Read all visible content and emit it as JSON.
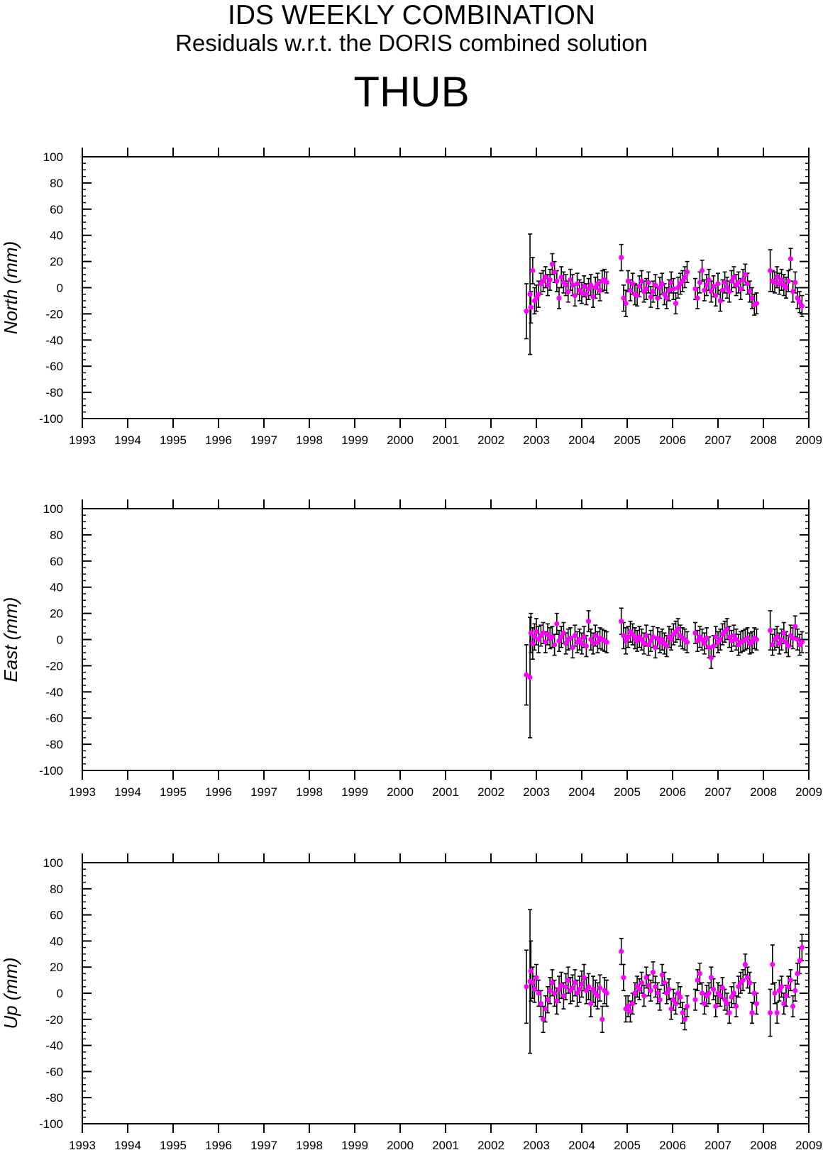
{
  "header": {
    "title": "IDS WEEKLY COMBINATION",
    "subtitle": "Residuals w.r.t. the DORIS combined solution",
    "station": "THUB"
  },
  "colors": {
    "marker": "#ff00ff",
    "errorbar": "#000000",
    "axis": "#000000"
  },
  "chart_data": [
    {
      "type": "scatter",
      "title": "",
      "ylabel": "North (mm)",
      "xlabel": "",
      "xlim": [
        1993,
        2009
      ],
      "ylim": [
        -100,
        100
      ],
      "x_ticks": [
        "1993",
        "1994",
        "1995",
        "1996",
        "1997",
        "1998",
        "1999",
        "2000",
        "2001",
        "2002",
        "2003",
        "2004",
        "2005",
        "2006",
        "2007",
        "2008",
        "2009"
      ],
      "y_ticks": [
        "100",
        "80",
        "60",
        "40",
        "20",
        "0",
        "-20",
        "-40",
        "-60",
        "-80",
        "-100"
      ],
      "grid": false,
      "error_bars": true,
      "series": [
        {
          "x": [
            2002.78,
            2002.86,
            2002.88,
            2002.92,
            2002.96,
            2003.0,
            2003.05,
            2003.1,
            2003.15,
            2003.2,
            2003.25,
            2003.3,
            2003.35,
            2003.4,
            2003.45,
            2003.5,
            2003.55,
            2003.6,
            2003.65,
            2003.7,
            2003.75,
            2003.8,
            2003.85,
            2003.9,
            2003.95,
            2004.0,
            2004.05,
            2004.1,
            2004.15,
            2004.2,
            2004.25,
            2004.3,
            2004.35,
            2004.4,
            2004.45,
            2004.5,
            2004.55,
            2004.87,
            2004.92,
            2004.97,
            2005.02,
            2005.07,
            2005.12,
            2005.17,
            2005.22,
            2005.27,
            2005.32,
            2005.37,
            2005.42,
            2005.47,
            2005.52,
            2005.57,
            2005.62,
            2005.67,
            2005.72,
            2005.77,
            2005.82,
            2005.87,
            2005.92,
            2005.97,
            2006.02,
            2006.07,
            2006.12,
            2006.17,
            2006.22,
            2006.27,
            2006.32,
            2006.5,
            2006.55,
            2006.6,
            2006.65,
            2006.7,
            2006.75,
            2006.8,
            2006.85,
            2006.9,
            2006.95,
            2007.0,
            2007.05,
            2007.1,
            2007.15,
            2007.2,
            2007.25,
            2007.3,
            2007.35,
            2007.4,
            2007.45,
            2007.5,
            2007.55,
            2007.6,
            2007.65,
            2007.7,
            2007.75,
            2007.8,
            2007.85,
            2008.15,
            2008.2,
            2008.25,
            2008.3,
            2008.35,
            2008.4,
            2008.45,
            2008.5,
            2008.55,
            2008.6,
            2008.65,
            2008.7,
            2008.75,
            2008.8,
            2008.85
          ],
          "y": [
            -18,
            -5,
            -15,
            13,
            -10,
            -8,
            -5,
            3,
            5,
            8,
            2,
            6,
            18,
            12,
            5,
            -8,
            8,
            4,
            2,
            -3,
            6,
            2,
            -6,
            3,
            -2,
            -4,
            1,
            -5,
            -1,
            2,
            -7,
            0,
            3,
            -2,
            5,
            6,
            4,
            23,
            -8,
            -12,
            5,
            -2,
            3,
            -5,
            -6,
            1,
            5,
            -3,
            -1,
            4,
            -7,
            -3,
            2,
            -8,
            0,
            3,
            -5,
            -8,
            -2,
            4,
            -1,
            -12,
            0,
            3,
            5,
            8,
            12,
            -1,
            -8,
            4,
            13,
            -2,
            2,
            6,
            -3,
            1,
            -6,
            3,
            -10,
            -2,
            4,
            0,
            -3,
            5,
            8,
            2,
            4,
            -1,
            6,
            10,
            3,
            -3,
            -8,
            -13,
            -12,
            13,
            5,
            4,
            8,
            3,
            6,
            2,
            0,
            5,
            22,
            -3,
            4,
            -8,
            -11,
            -14
          ],
          "e": [
            21,
            46,
            12,
            10,
            10,
            10,
            10,
            8,
            8,
            8,
            8,
            8,
            8,
            8,
            8,
            8,
            8,
            8,
            8,
            8,
            8,
            8,
            8,
            8,
            8,
            8,
            8,
            8,
            8,
            8,
            8,
            8,
            8,
            8,
            8,
            8,
            8,
            10,
            10,
            10,
            8,
            8,
            8,
            8,
            8,
            8,
            8,
            8,
            8,
            8,
            8,
            8,
            8,
            8,
            8,
            8,
            8,
            8,
            8,
            8,
            8,
            8,
            8,
            8,
            8,
            8,
            8,
            8,
            8,
            8,
            8,
            8,
            8,
            8,
            8,
            8,
            8,
            8,
            8,
            8,
            8,
            8,
            8,
            8,
            8,
            8,
            8,
            8,
            8,
            8,
            8,
            8,
            8,
            8,
            8,
            16,
            8,
            8,
            8,
            8,
            8,
            8,
            8,
            8,
            8,
            8,
            8,
            8,
            8,
            8
          ]
        }
      ]
    },
    {
      "type": "scatter",
      "title": "",
      "ylabel": "East (mm)",
      "xlabel": "",
      "xlim": [
        1993,
        2009
      ],
      "ylim": [
        -100,
        100
      ],
      "x_ticks": [
        "1993",
        "1994",
        "1995",
        "1996",
        "1997",
        "1998",
        "1999",
        "2000",
        "2001",
        "2002",
        "2003",
        "2004",
        "2005",
        "2006",
        "2007",
        "2008",
        "2009"
      ],
      "y_ticks": [
        "100",
        "80",
        "60",
        "40",
        "20",
        "0",
        "-20",
        "-40",
        "-60",
        "-80",
        "-100"
      ],
      "grid": false,
      "error_bars": true,
      "series": [
        {
          "x": [
            2002.78,
            2002.86,
            2002.88,
            2002.92,
            2002.96,
            2003.0,
            2003.05,
            2003.1,
            2003.15,
            2003.2,
            2003.25,
            2003.3,
            2003.35,
            2003.4,
            2003.45,
            2003.5,
            2003.55,
            2003.6,
            2003.65,
            2003.7,
            2003.75,
            2003.8,
            2003.85,
            2003.9,
            2003.95,
            2004.0,
            2004.05,
            2004.1,
            2004.15,
            2004.2,
            2004.25,
            2004.3,
            2004.35,
            2004.4,
            2004.45,
            2004.5,
            2004.55,
            2004.87,
            2004.92,
            2004.97,
            2005.02,
            2005.07,
            2005.12,
            2005.17,
            2005.22,
            2005.27,
            2005.32,
            2005.37,
            2005.42,
            2005.47,
            2005.52,
            2005.57,
            2005.62,
            2005.67,
            2005.72,
            2005.77,
            2005.82,
            2005.87,
            2005.92,
            2005.97,
            2006.02,
            2006.07,
            2006.12,
            2006.17,
            2006.22,
            2006.27,
            2006.32,
            2006.5,
            2006.55,
            2006.6,
            2006.65,
            2006.7,
            2006.75,
            2006.8,
            2006.85,
            2006.9,
            2006.95,
            2007.0,
            2007.05,
            2007.1,
            2007.15,
            2007.2,
            2007.25,
            2007.3,
            2007.35,
            2007.4,
            2007.45,
            2007.5,
            2007.55,
            2007.6,
            2007.65,
            2007.7,
            2007.75,
            2007.8,
            2007.85,
            2008.15,
            2008.2,
            2008.25,
            2008.3,
            2008.35,
            2008.4,
            2008.45,
            2008.5,
            2008.55,
            2008.6,
            2008.65,
            2008.7,
            2008.75,
            2008.8,
            2008.85
          ],
          "y": [
            -27,
            -29,
            5,
            -3,
            2,
            6,
            0,
            3,
            5,
            -2,
            4,
            1,
            2,
            -4,
            12,
            -1,
            2,
            5,
            -3,
            0,
            1,
            -6,
            3,
            -2,
            0,
            -3,
            2,
            -5,
            14,
            0,
            -3,
            3,
            -2,
            1,
            0,
            -1,
            -2,
            14,
            3,
            -1,
            2,
            6,
            4,
            1,
            -1,
            2,
            0,
            -3,
            3,
            -4,
            -1,
            2,
            -6,
            1,
            -2,
            0,
            -3,
            -5,
            2,
            0,
            4,
            6,
            8,
            3,
            1,
            0,
            -2,
            5,
            -1,
            2,
            0,
            -3,
            1,
            -6,
            -14,
            -5,
            2,
            -2,
            0,
            4,
            6,
            8,
            2,
            -1,
            3,
            0,
            -4,
            -2,
            -1,
            0,
            1,
            -3,
            -2,
            1,
            0,
            7,
            -4,
            0,
            2,
            -3,
            0,
            5,
            -2,
            -5,
            3,
            1,
            10,
            0,
            -4,
            -2
          ],
          "e": [
            23,
            46,
            15,
            12,
            10,
            10,
            10,
            8,
            8,
            8,
            8,
            8,
            8,
            8,
            8,
            8,
            8,
            8,
            8,
            8,
            8,
            8,
            8,
            8,
            8,
            8,
            8,
            8,
            8,
            8,
            8,
            8,
            8,
            8,
            8,
            8,
            8,
            10,
            10,
            10,
            8,
            8,
            8,
            8,
            8,
            8,
            8,
            8,
            8,
            8,
            8,
            8,
            8,
            8,
            8,
            8,
            8,
            8,
            8,
            8,
            8,
            8,
            8,
            8,
            8,
            8,
            8,
            8,
            8,
            8,
            8,
            8,
            8,
            8,
            8,
            8,
            8,
            8,
            8,
            8,
            8,
            8,
            8,
            8,
            8,
            8,
            8,
            8,
            8,
            8,
            8,
            8,
            8,
            8,
            8,
            15,
            8,
            8,
            8,
            8,
            8,
            8,
            8,
            8,
            8,
            8,
            8,
            8,
            8,
            8
          ]
        }
      ]
    },
    {
      "type": "scatter",
      "title": "",
      "ylabel": "Up (mm)",
      "xlabel": "",
      "xlim": [
        1993,
        2009
      ],
      "ylim": [
        -100,
        100
      ],
      "x_ticks": [
        "1993",
        "1994",
        "1995",
        "1996",
        "1997",
        "1998",
        "1999",
        "2000",
        "2001",
        "2002",
        "2003",
        "2004",
        "2005",
        "2006",
        "2007",
        "2008",
        "2009"
      ],
      "y_ticks": [
        "100",
        "80",
        "60",
        "40",
        "20",
        "0",
        "-20",
        "-40",
        "-60",
        "-80",
        "-100"
      ],
      "grid": false,
      "error_bars": true,
      "series": [
        {
          "x": [
            2002.78,
            2002.86,
            2002.88,
            2002.92,
            2002.96,
            2003.0,
            2003.05,
            2003.1,
            2003.15,
            2003.2,
            2003.25,
            2003.3,
            2003.35,
            2003.4,
            2003.45,
            2003.5,
            2003.55,
            2003.6,
            2003.65,
            2003.7,
            2003.75,
            2003.8,
            2003.85,
            2003.9,
            2003.95,
            2004.0,
            2004.05,
            2004.1,
            2004.15,
            2004.2,
            2004.25,
            2004.3,
            2004.35,
            2004.4,
            2004.45,
            2004.5,
            2004.55,
            2004.87,
            2004.92,
            2004.97,
            2005.02,
            2005.07,
            2005.12,
            2005.17,
            2005.22,
            2005.27,
            2005.32,
            2005.37,
            2005.42,
            2005.47,
            2005.52,
            2005.57,
            2005.62,
            2005.67,
            2005.72,
            2005.77,
            2005.82,
            2005.87,
            2005.92,
            2005.97,
            2006.02,
            2006.07,
            2006.12,
            2006.17,
            2006.22,
            2006.27,
            2006.32,
            2006.5,
            2006.55,
            2006.6,
            2006.65,
            2006.7,
            2006.75,
            2006.8,
            2006.85,
            2006.9,
            2006.95,
            2007.0,
            2007.05,
            2007.1,
            2007.15,
            2007.2,
            2007.25,
            2007.3,
            2007.35,
            2007.4,
            2007.45,
            2007.5,
            2007.55,
            2007.6,
            2007.65,
            2007.7,
            2007.75,
            2007.8,
            2007.85,
            2008.15,
            2008.2,
            2008.25,
            2008.3,
            2008.35,
            2008.4,
            2008.45,
            2008.5,
            2008.55,
            2008.6,
            2008.65,
            2008.7,
            2008.75,
            2008.8,
            2008.85
          ],
          "y": [
            5,
            9,
            17,
            8,
            3,
            12,
            0,
            -8,
            -20,
            -12,
            -5,
            2,
            8,
            0,
            -6,
            3,
            6,
            -2,
            5,
            10,
            2,
            4,
            8,
            0,
            3,
            7,
            12,
            2,
            5,
            -8,
            3,
            0,
            -2,
            4,
            -20,
            2,
            0,
            32,
            12,
            -12,
            -10,
            -14,
            -8,
            0,
            5,
            3,
            8,
            -2,
            12,
            6,
            2,
            16,
            5,
            0,
            -5,
            14,
            8,
            0,
            3,
            -12,
            -5,
            -8,
            0,
            -3,
            -15,
            -20,
            -10,
            -5,
            10,
            15,
            0,
            -8,
            -2,
            0,
            12,
            3,
            -10,
            0,
            -2,
            4,
            -5,
            -8,
            -15,
            -3,
            0,
            -10,
            5,
            8,
            10,
            22,
            12,
            8,
            -15,
            0,
            -8,
            -15,
            22,
            0,
            -15,
            2,
            5,
            -8,
            -2,
            5,
            10,
            -10,
            2,
            15,
            25,
            35
          ],
          "e": [
            28,
            55,
            23,
            12,
            10,
            10,
            10,
            10,
            10,
            10,
            10,
            10,
            10,
            10,
            10,
            10,
            10,
            10,
            10,
            10,
            10,
            10,
            10,
            10,
            10,
            10,
            10,
            10,
            10,
            10,
            10,
            10,
            10,
            10,
            10,
            10,
            10,
            10,
            10,
            10,
            8,
            8,
            8,
            8,
            8,
            8,
            8,
            8,
            8,
            8,
            8,
            8,
            8,
            8,
            8,
            8,
            8,
            8,
            8,
            8,
            8,
            8,
            8,
            8,
            8,
            8,
            8,
            8,
            8,
            8,
            8,
            8,
            8,
            8,
            8,
            8,
            8,
            8,
            8,
            8,
            8,
            8,
            8,
            8,
            8,
            8,
            8,
            8,
            8,
            8,
            8,
            8,
            8,
            8,
            8,
            18,
            15,
            8,
            8,
            8,
            8,
            8,
            8,
            8,
            8,
            8,
            8,
            8,
            10,
            10
          ]
        }
      ]
    }
  ]
}
